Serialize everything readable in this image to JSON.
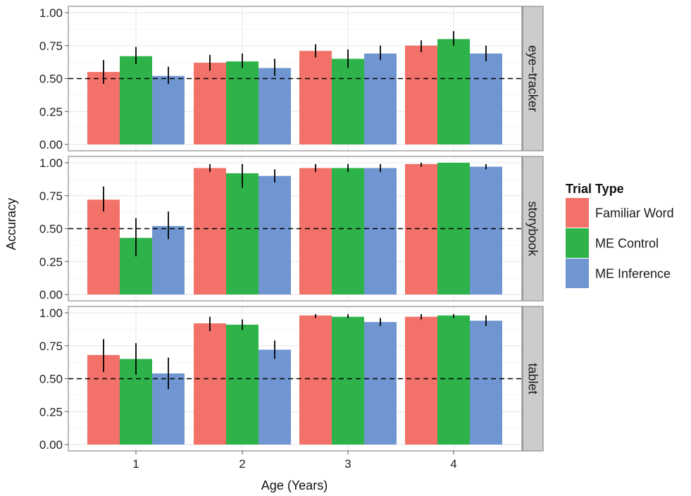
{
  "chart_data": {
    "type": "bar",
    "title": "",
    "xlabel": "Age (Years)",
    "ylabel": "Accuracy",
    "categories": [
      "1",
      "2",
      "3",
      "4"
    ],
    "ylim": [
      0,
      1
    ],
    "yticks": [
      "0.00",
      "0.25",
      "0.50",
      "0.75",
      "1.00"
    ],
    "reference_line": 0.5,
    "grid": true,
    "legend": {
      "title": "Trial Type",
      "position": "right",
      "entries": [
        {
          "name": "Familiar Word",
          "color": "#F27168"
        },
        {
          "name": "ME Control",
          "color": "#2EB34A"
        },
        {
          "name": "ME Inference",
          "color": "#6F96D1"
        }
      ]
    },
    "panels": [
      {
        "label": "eye−tracker",
        "series": [
          {
            "name": "Familiar Word",
            "values": [
              0.55,
              0.62,
              0.71,
              0.75
            ],
            "error_low": [
              0.46,
              0.56,
              0.66,
              0.7
            ],
            "error_high": [
              0.64,
              0.68,
              0.76,
              0.79
            ]
          },
          {
            "name": "ME Control",
            "values": [
              0.67,
              0.63,
              0.65,
              0.8
            ],
            "error_low": [
              0.61,
              0.58,
              0.58,
              0.75
            ],
            "error_high": [
              0.74,
              0.69,
              0.72,
              0.86
            ]
          },
          {
            "name": "ME Inference",
            "values": [
              0.52,
              0.58,
              0.69,
              0.69
            ],
            "error_low": [
              0.46,
              0.52,
              0.64,
              0.63
            ],
            "error_high": [
              0.59,
              0.65,
              0.75,
              0.75
            ]
          }
        ]
      },
      {
        "label": "storybook",
        "series": [
          {
            "name": "Familiar Word",
            "values": [
              0.72,
              0.96,
              0.96,
              0.99
            ],
            "error_low": [
              0.63,
              0.93,
              0.93,
              0.97
            ],
            "error_high": [
              0.82,
              0.99,
              0.99,
              1.0
            ]
          },
          {
            "name": "ME Control",
            "values": [
              0.43,
              0.92,
              0.96,
              1.0
            ],
            "error_low": [
              0.29,
              0.81,
              0.93,
              1.0
            ],
            "error_high": [
              0.58,
              0.99,
              0.99,
              1.0
            ]
          },
          {
            "name": "ME Inference",
            "values": [
              0.52,
              0.9,
              0.96,
              0.97
            ],
            "error_low": [
              0.42,
              0.85,
              0.93,
              0.95
            ],
            "error_high": [
              0.63,
              0.95,
              0.99,
              0.99
            ]
          }
        ]
      },
      {
        "label": "tablet",
        "series": [
          {
            "name": "Familiar Word",
            "values": [
              0.68,
              0.92,
              0.98,
              0.97
            ],
            "error_low": [
              0.55,
              0.86,
              0.96,
              0.95
            ],
            "error_high": [
              0.8,
              0.97,
              0.99,
              0.99
            ]
          },
          {
            "name": "ME Control",
            "values": [
              0.65,
              0.91,
              0.97,
              0.98
            ],
            "error_low": [
              0.53,
              0.87,
              0.96,
              0.96
            ],
            "error_high": [
              0.77,
              0.95,
              0.99,
              0.99
            ]
          },
          {
            "name": "ME Inference",
            "values": [
              0.54,
              0.72,
              0.93,
              0.94
            ],
            "error_low": [
              0.42,
              0.65,
              0.9,
              0.9
            ],
            "error_high": [
              0.66,
              0.79,
              0.96,
              0.98
            ]
          }
        ]
      }
    ]
  }
}
